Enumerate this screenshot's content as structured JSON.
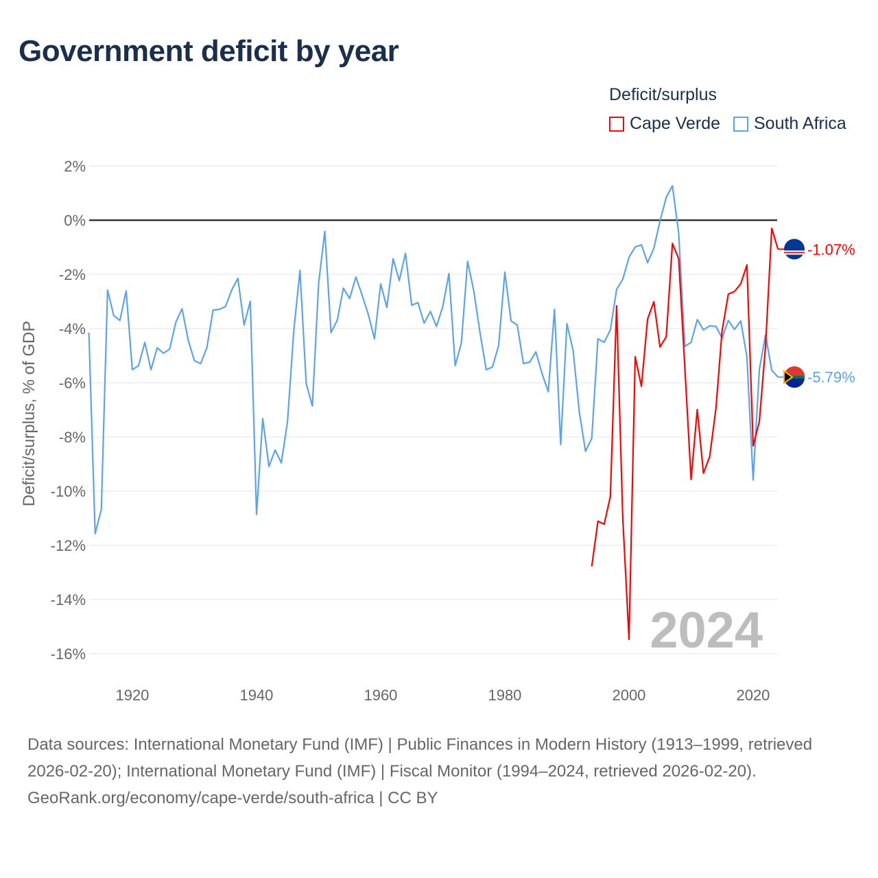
{
  "title": "Government deficit by year",
  "legend": {
    "title": "Deficit/surplus",
    "items": [
      {
        "label": "Cape Verde",
        "color": "#ff0000"
      },
      {
        "label": "South Africa",
        "color": "#5ba3ea"
      }
    ]
  },
  "footer": {
    "sources": "Data sources: International Monetary Fund (IMF) | Public Finances in Modern History (1913–1999, retrieved 2026-02-20); International Monetary Fund (IMF) | Fiscal Monitor (1994–2024, retrieved 2026-02-20).",
    "link": "GeoRank.org/economy/cape-verde/south-africa | CC BY"
  },
  "chart_data": {
    "type": "line",
    "title": "Government deficit by year",
    "xlabel": "",
    "ylabel": "Deficit/surplus, % of GDP",
    "xlim": [
      1913,
      2024
    ],
    "ylim": [
      -16,
      2
    ],
    "x_ticks": [
      1920,
      1940,
      1960,
      1980,
      2000,
      2020
    ],
    "y_ticks": [
      2,
      0,
      -2,
      -4,
      -6,
      -8,
      -10,
      -12,
      -14,
      -16
    ],
    "y_tick_labels": [
      "2%",
      "0%",
      "-2%",
      "-4%",
      "-6%",
      "-8%",
      "-10%",
      "-12%",
      "-14%",
      "-16%"
    ],
    "year_watermark": "2024",
    "legend_position": "top-right",
    "series": [
      {
        "name": "South Africa",
        "color": "#5ba3ea",
        "end_label": "-5.79%",
        "start_year": 1913,
        "values": [
          -4.15,
          -11.57,
          -10.68,
          -2.58,
          -3.52,
          -3.7,
          -2.61,
          -5.52,
          -5.37,
          -4.51,
          -5.52,
          -4.71,
          -4.91,
          -4.76,
          -3.77,
          -3.27,
          -4.43,
          -5.19,
          -5.29,
          -4.71,
          -3.32,
          -3.29,
          -3.19,
          -2.58,
          -2.15,
          -3.87,
          -2.99,
          -10.86,
          -7.32,
          -9.09,
          -8.48,
          -8.96,
          -7.42,
          -4.08,
          -1.85,
          -6.03,
          -6.86,
          -2.33,
          -0.41,
          -4.15,
          -3.7,
          -2.51,
          -2.89,
          -2.1,
          -2.76,
          -3.47,
          -4.38,
          -2.35,
          -3.22,
          -1.42,
          -2.23,
          -1.22,
          -3.14,
          -3.04,
          -3.8,
          -3.37,
          -3.92,
          -3.19,
          -1.97,
          -5.37,
          -4.53,
          -1.52,
          -2.61,
          -4.15,
          -5.52,
          -5.42,
          -4.63,
          -1.92,
          -3.72,
          -3.87,
          -5.29,
          -5.24,
          -4.86,
          -5.67,
          -6.33,
          -3.29,
          -8.28,
          -3.82,
          -4.81,
          -7.09,
          -8.53,
          -8.05,
          -4.38,
          -4.51,
          -4.05,
          -2.56,
          -2.18,
          -1.37,
          -0.99,
          -0.91,
          -1.57,
          -1.04,
          -0.03,
          0.84,
          1.27,
          -0.48,
          -4.66,
          -4.51,
          -3.67,
          -4.05,
          -3.9,
          -3.92,
          -4.35,
          -3.7,
          -4.03,
          -3.72,
          -5.04,
          -9.59,
          -5.52,
          -4.23,
          -5.54,
          -5.79
        ]
      },
      {
        "name": "Cape Verde",
        "color": "#ff0000",
        "end_label": "-1.07%",
        "start_year": 1994,
        "values": [
          -12.78,
          -11.11,
          -11.22,
          -10.2,
          -3.16,
          -10.99,
          -15.47,
          -5.04,
          -6.13,
          -3.65,
          -3.01,
          -4.68,
          -4.3,
          -0.86,
          -1.42,
          -5.44,
          -9.57,
          -6.99,
          -9.34,
          -8.73,
          -6.96,
          -4.08,
          -2.73,
          -2.63,
          -2.35,
          -1.65,
          -8.33,
          -7.44,
          -4.66,
          -0.3,
          -1.07
        ]
      }
    ]
  }
}
